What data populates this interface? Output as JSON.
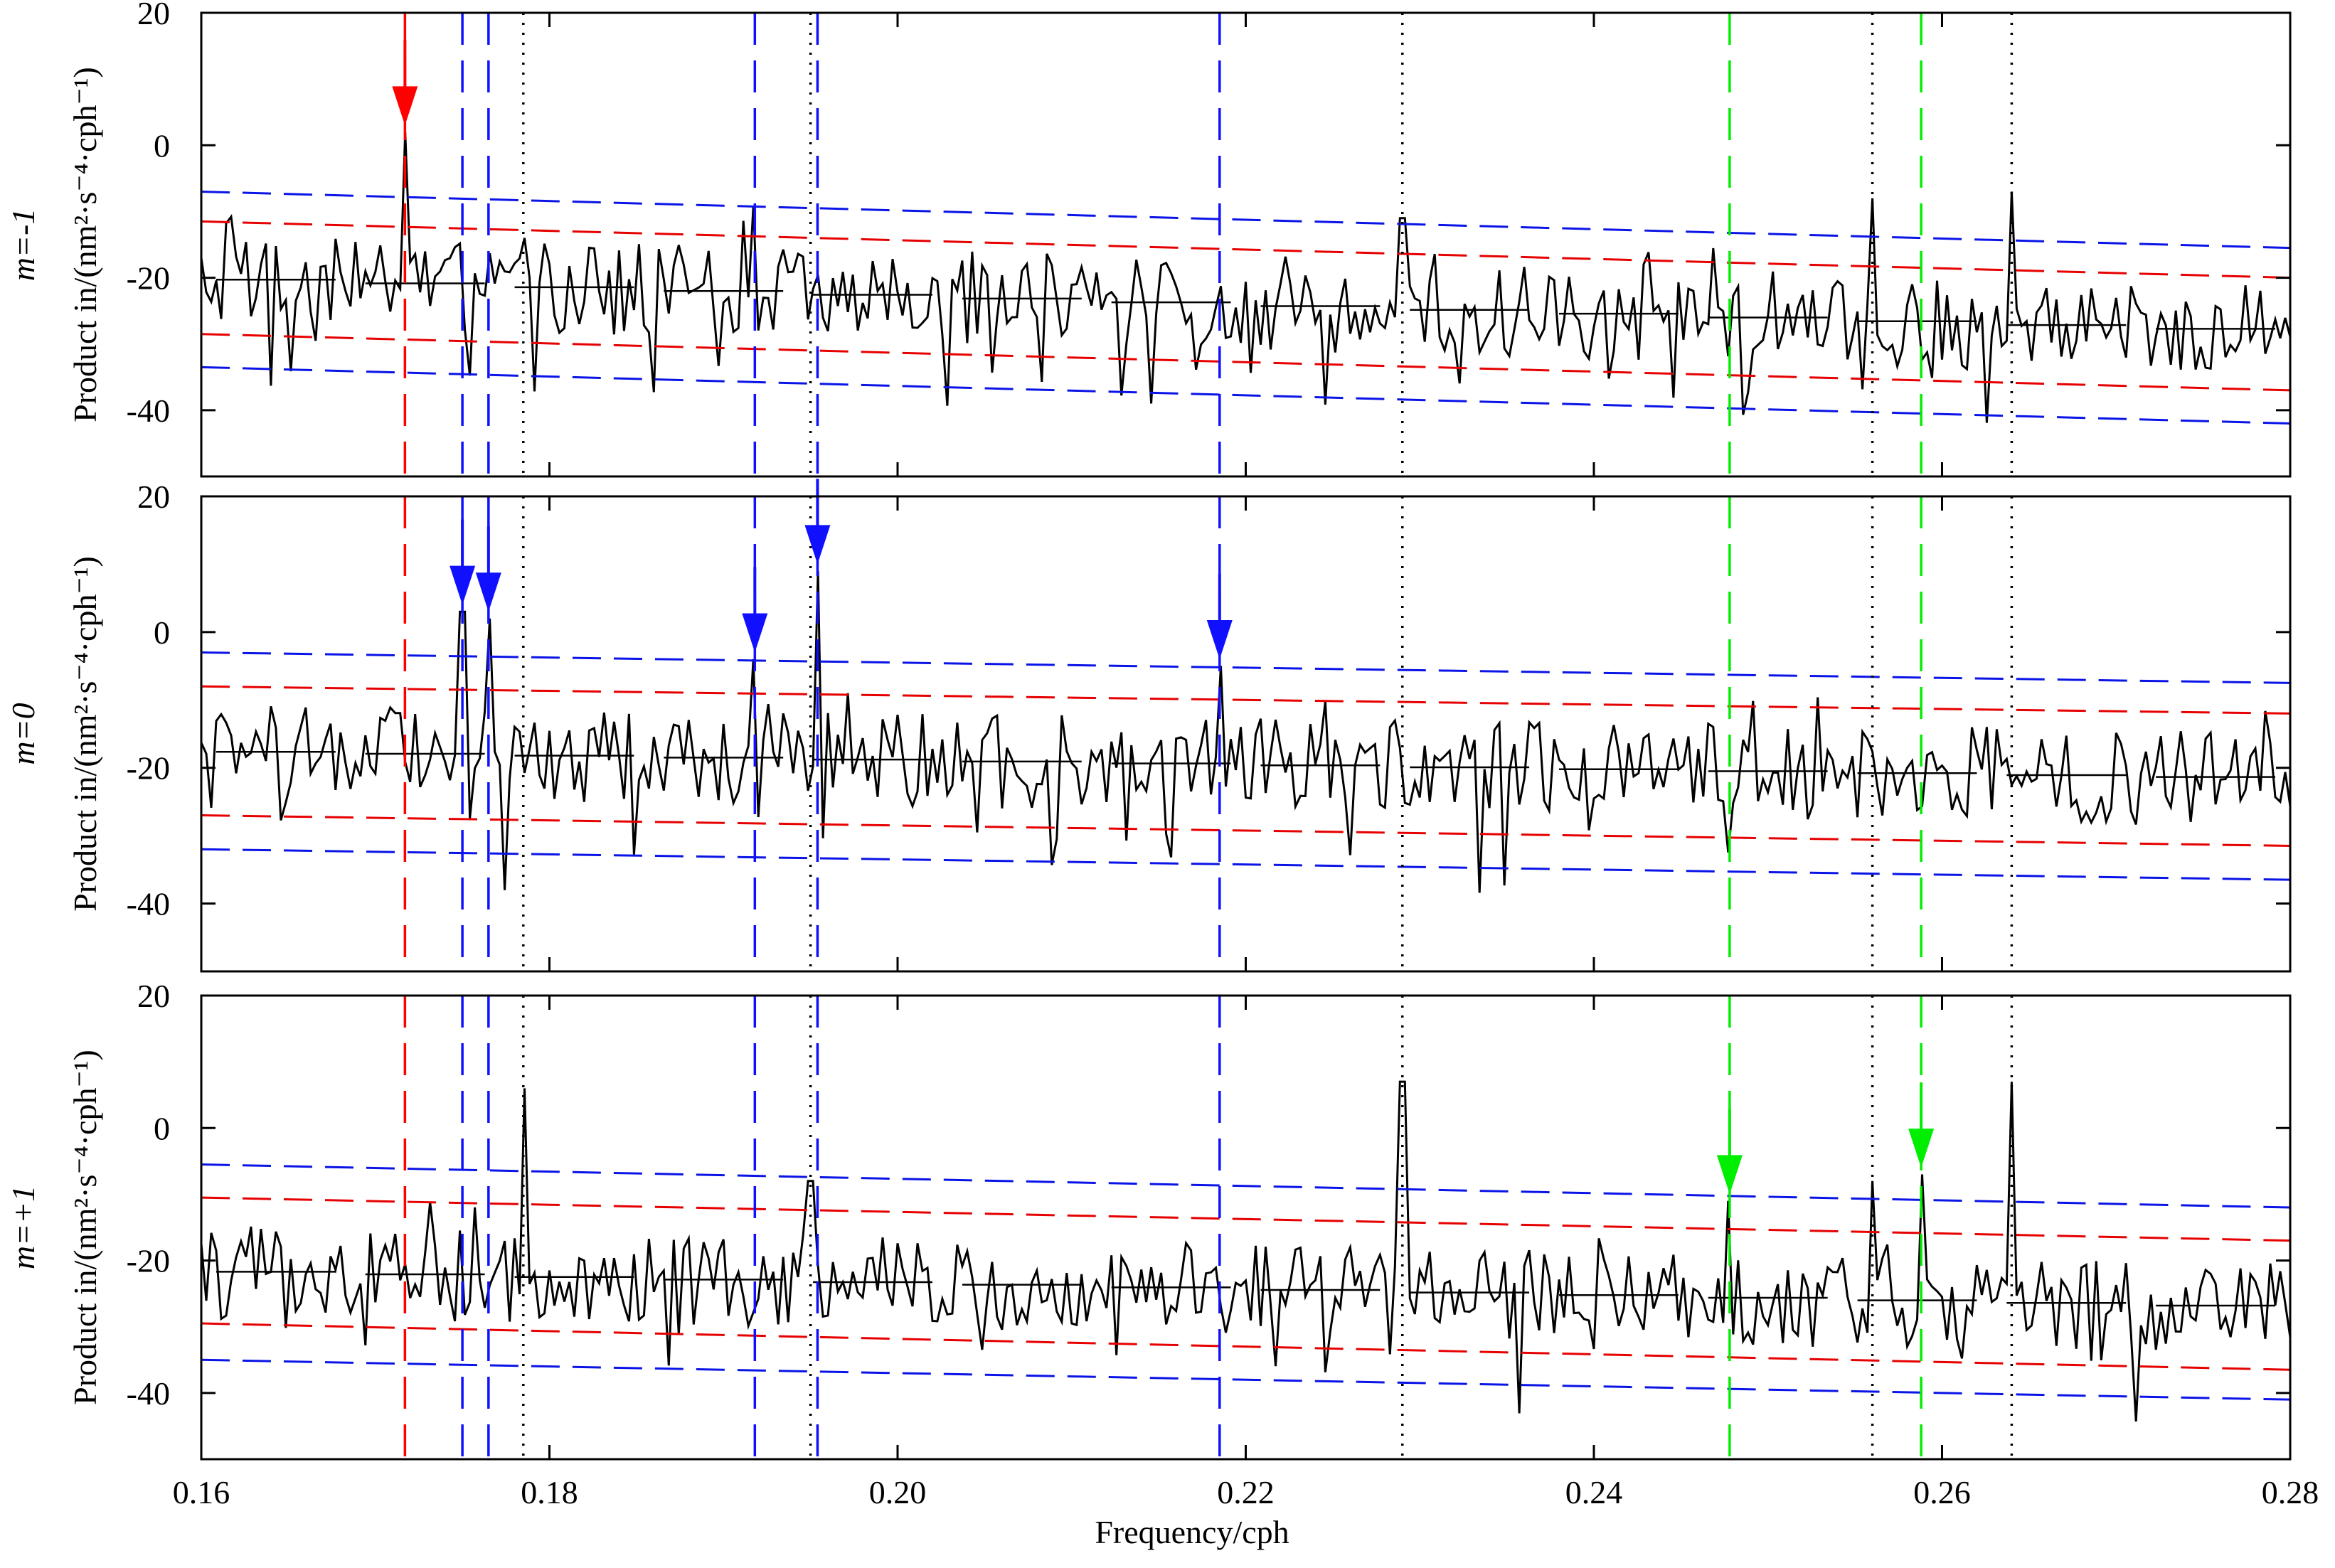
{
  "chart_data": {
    "type": "line",
    "xlabel": "Frequency/cph",
    "xlim": [
      0.16,
      0.28
    ],
    "x_ticks": [
      "0.16",
      "0.18",
      "0.20",
      "0.22",
      "0.24",
      "0.26",
      "0.28"
    ],
    "colors": {
      "trace": "#000000",
      "conf_95": "#e60000",
      "conf_99": "#0a14e6",
      "red_marker": "#ff0000",
      "blue_marker": "#1010ff",
      "green_marker": "#00ee00"
    },
    "vertical_lines": {
      "dotted_black": [
        0.1785,
        0.195,
        0.229,
        0.256,
        0.264
      ],
      "dashed_red": [
        0.1717
      ],
      "dashed_blue": [
        0.175,
        0.1765,
        0.1918,
        0.1954,
        0.2185
      ],
      "dashed_green": [
        0.2478,
        0.2588
      ]
    },
    "panels": [
      {
        "id": "m-1",
        "side_label": "m=-1",
        "ylabel": "Product in/(nm²·s⁻⁴·cph⁻¹)",
        "ylim": [
          -50,
          20
        ],
        "y_ticks": [
          "20",
          "0",
          "-20",
          "-40"
        ],
        "mean_start": -20,
        "mean_end": -28,
        "band95_upper": [
          -11.5,
          -20
        ],
        "band95_lower": [
          -28.5,
          -37
        ],
        "band99_upper": [
          -7,
          -15.5
        ],
        "band99_lower": [
          -33.5,
          -42
        ],
        "peaks": [
          [
            0.1717,
            2
          ],
          [
            0.1786,
            -14
          ],
          [
            0.229,
            -11
          ],
          [
            0.256,
            -8
          ],
          [
            0.264,
            -7
          ]
        ],
        "arrows": [
          {
            "x": 0.1717,
            "color": "red"
          }
        ]
      },
      {
        "id": "m0",
        "side_label": "m=0",
        "ylabel": "Product in/(nm²·s⁻⁴·cph⁻¹)",
        "ylim": [
          -50,
          20
        ],
        "y_ticks": [
          "20",
          "0",
          "-20",
          "-40"
        ],
        "mean_start": -17.5,
        "mean_end": -21.5,
        "band95_upper": [
          -8,
          -12
        ],
        "band95_lower": [
          -27,
          -31.5
        ],
        "band99_upper": [
          -3,
          -7.5
        ],
        "band99_lower": [
          -32,
          -36.5
        ],
        "peaks": [
          [
            0.175,
            3
          ],
          [
            0.1765,
            2
          ],
          [
            0.1918,
            -4
          ],
          [
            0.1954,
            9
          ],
          [
            0.2185,
            -5
          ]
        ],
        "arrows": [
          {
            "x": 0.175,
            "color": "blue"
          },
          {
            "x": 0.1765,
            "color": "blue"
          },
          {
            "x": 0.1918,
            "color": "blue"
          },
          {
            "x": 0.1954,
            "color": "blue"
          },
          {
            "x": 0.2185,
            "color": "blue"
          }
        ]
      },
      {
        "id": "m+1",
        "side_label": "m=+1",
        "ylabel": "Product in/(nm²·s⁻⁴·cph⁻¹)",
        "ylim": [
          -50,
          20
        ],
        "y_ticks": [
          "20",
          "0",
          "-20",
          "-40"
        ],
        "mean_start": -21.5,
        "mean_end": -27,
        "band95_upper": [
          -10.5,
          -17
        ],
        "band95_lower": [
          -29.5,
          -36.5
        ],
        "band99_upper": [
          -5.5,
          -12
        ],
        "band99_lower": [
          -35,
          -41
        ],
        "peaks": [
          [
            0.1785,
            6
          ],
          [
            0.195,
            -8
          ],
          [
            0.229,
            7
          ],
          [
            0.2478,
            -11
          ],
          [
            0.256,
            -8
          ],
          [
            0.2588,
            -7
          ],
          [
            0.264,
            7
          ]
        ],
        "arrows": [
          {
            "x": 0.2478,
            "color": "green"
          },
          {
            "x": 0.2588,
            "color": "green"
          }
        ]
      }
    ]
  }
}
